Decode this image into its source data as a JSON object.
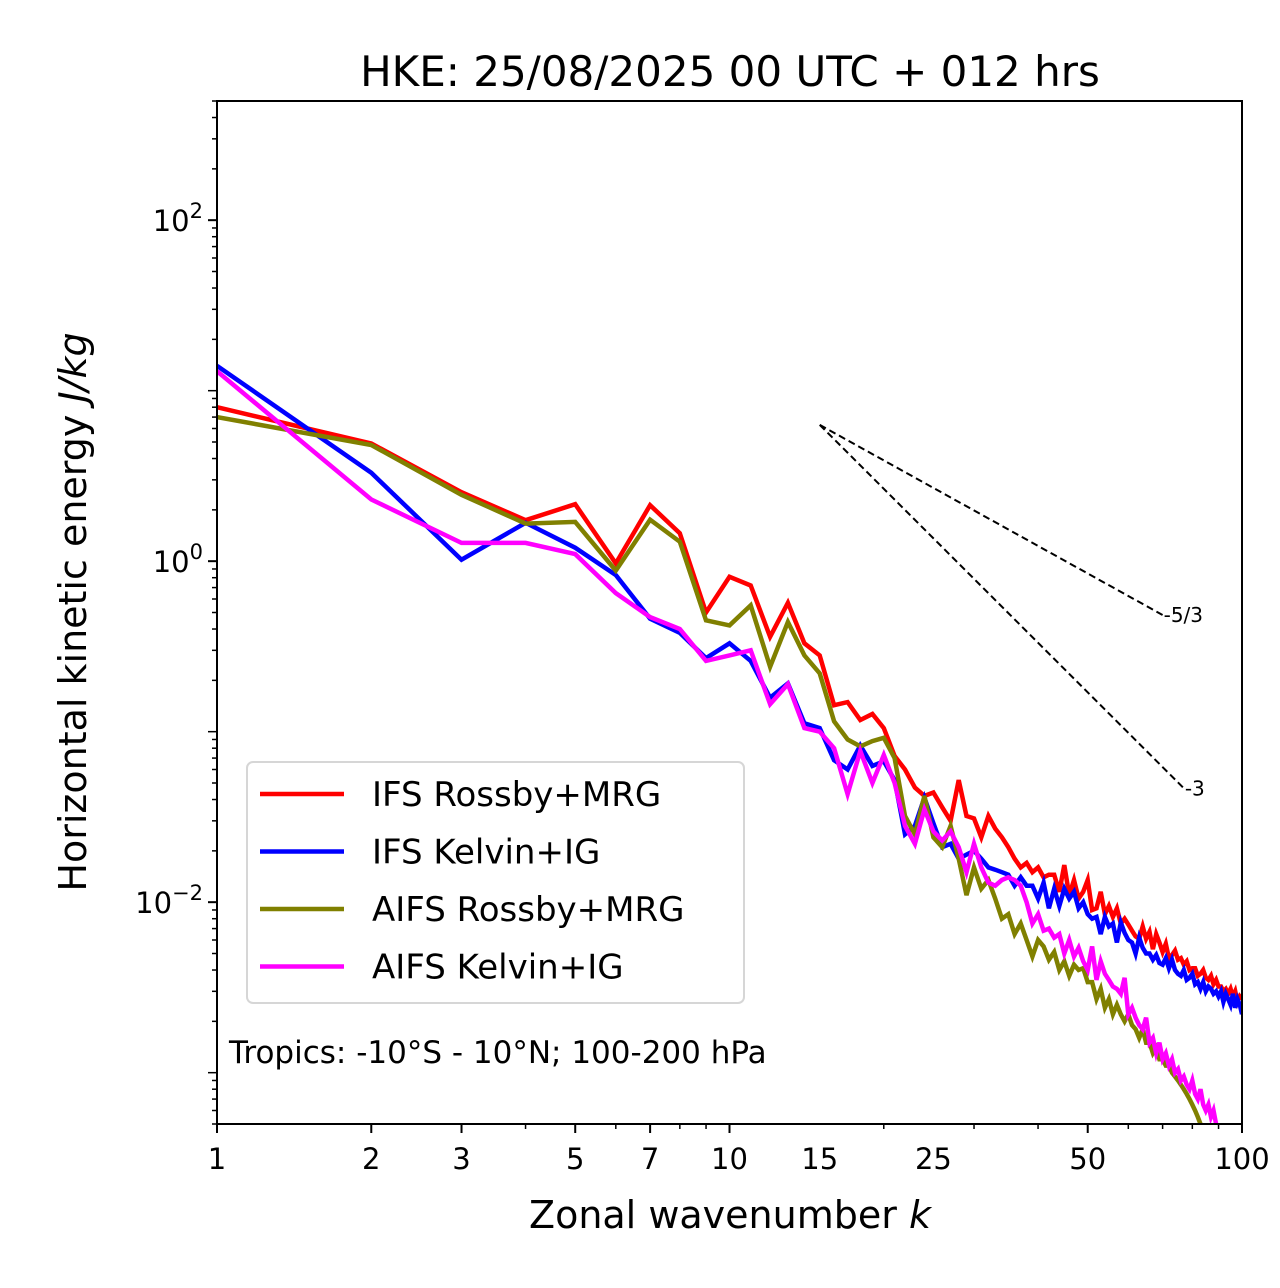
{
  "chart_data": {
    "type": "line",
    "title": "HKE: 25/08/2025 00 UTC + 012 hrs",
    "xlabel": "Zonal wavenumber",
    "xlabel_italic": "k",
    "ylabel": "Horizontal kinetic energy",
    "ylabel_italic": "J/kg",
    "xscale": "log",
    "yscale": "log",
    "xlim": [
      1,
      100
    ],
    "ylim": [
      0.0005,
      500
    ],
    "grid": false,
    "legend_position": "lower-left",
    "x_tick_labels": [
      "1",
      "2",
      "3",
      "5",
      "7",
      "10",
      "15",
      "25",
      "50",
      "100"
    ],
    "x_ticks": [
      1,
      2,
      3,
      5,
      7,
      10,
      15,
      25,
      50,
      100
    ],
    "y_ticks": [
      0.01,
      1,
      100
    ],
    "y_tick_labels": [
      {
        "base": "10",
        "exp": "−2"
      },
      {
        "base": "10",
        "exp": "0"
      },
      {
        "base": "10",
        "exp": "2"
      }
    ],
    "annotation": "Tropics: -10°S - 10°N; 100-200 hPa",
    "reference_slopes": [
      {
        "label": "-5/3",
        "slope": -1.6667,
        "x_start": 15,
        "x_end": 70,
        "y_start": 6.3
      },
      {
        "label": "-3",
        "slope": -3,
        "x_start": 15,
        "x_end": 77,
        "y_start": 6.3
      }
    ],
    "series": [
      {
        "name": "IFS Rossby+MRG",
        "color": "#ff0000",
        "x": [
          1,
          2,
          3,
          4,
          5,
          6,
          7,
          8,
          9,
          10,
          11,
          12,
          13,
          14,
          15,
          16,
          17,
          18,
          19,
          20,
          21,
          22,
          23,
          24,
          25,
          26,
          27,
          28,
          29,
          30,
          31,
          32,
          33,
          34,
          35,
          36,
          37,
          38,
          39,
          40,
          41,
          42,
          43,
          44,
          45,
          46,
          47,
          48,
          49,
          50,
          51,
          52,
          53,
          54,
          55,
          56,
          57,
          58,
          59,
          60,
          61,
          62,
          63,
          64,
          65,
          66,
          67,
          68,
          69,
          70,
          71,
          72,
          73,
          74,
          75,
          76,
          77,
          78,
          79,
          80,
          81,
          82,
          83,
          84,
          85,
          86,
          87,
          88,
          89,
          90,
          91,
          92,
          93,
          94,
          95,
          96,
          97,
          98,
          99,
          100
        ],
        "values": [
          8.0,
          4.9,
          2.54,
          1.74,
          2.16,
          0.97,
          2.13,
          1.46,
          0.5,
          0.81,
          0.72,
          0.36,
          0.57,
          0.33,
          0.28,
          0.143,
          0.149,
          0.117,
          0.127,
          0.105,
          0.072,
          0.06,
          0.047,
          0.042,
          0.044,
          0.036,
          0.03,
          0.052,
          0.032,
          0.031,
          0.024,
          0.032,
          0.027,
          0.024,
          0.021,
          0.018,
          0.016,
          0.017,
          0.015,
          0.016,
          0.014,
          0.0145,
          0.0145,
          0.0115,
          0.0165,
          0.011,
          0.0135,
          0.0105,
          0.0115,
          0.0135,
          0.009,
          0.0092,
          0.0115,
          0.0085,
          0.0095,
          0.0082,
          0.0092,
          0.0075,
          0.008,
          0.0074,
          0.0068,
          0.0063,
          0.0061,
          0.0072,
          0.0061,
          0.0067,
          0.0053,
          0.0065,
          0.0058,
          0.0051,
          0.0057,
          0.0047,
          0.0049,
          0.0052,
          0.0046,
          0.0047,
          0.0043,
          0.0045,
          0.004,
          0.0041,
          0.0041,
          0.0037,
          0.0038,
          0.004,
          0.0036,
          0.0035,
          0.0037,
          0.0033,
          0.0035,
          0.0032,
          0.0032,
          0.003,
          0.0031,
          0.0029,
          0.0031,
          0.0028,
          0.003,
          0.0026,
          0.0028,
          0.0027
        ]
      },
      {
        "name": "IFS Kelvin+IG",
        "color": "#0000ff",
        "x": [
          1,
          2,
          3,
          4,
          5,
          6,
          7,
          8,
          9,
          10,
          11,
          12,
          13,
          14,
          15,
          16,
          17,
          18,
          19,
          20,
          21,
          22,
          23,
          24,
          25,
          26,
          27,
          28,
          29,
          30,
          31,
          32,
          33,
          34,
          35,
          36,
          37,
          38,
          39,
          40,
          41,
          42,
          43,
          44,
          45,
          46,
          47,
          48,
          49,
          50,
          51,
          52,
          53,
          54,
          55,
          56,
          57,
          58,
          59,
          60,
          61,
          62,
          63,
          64,
          65,
          66,
          67,
          68,
          69,
          70,
          71,
          72,
          73,
          74,
          75,
          76,
          77,
          78,
          79,
          80,
          81,
          82,
          83,
          84,
          85,
          86,
          87,
          88,
          89,
          90,
          91,
          92,
          93,
          94,
          95,
          96,
          97,
          98,
          99,
          100
        ],
        "values": [
          14.0,
          3.3,
          1.02,
          1.68,
          1.2,
          0.83,
          0.46,
          0.38,
          0.27,
          0.33,
          0.26,
          0.158,
          0.192,
          0.112,
          0.105,
          0.068,
          0.06,
          0.083,
          0.063,
          0.067,
          0.052,
          0.025,
          0.028,
          0.041,
          0.029,
          0.021,
          0.022,
          0.018,
          0.019,
          0.02,
          0.018,
          0.016,
          0.0155,
          0.015,
          0.0145,
          0.0125,
          0.014,
          0.0125,
          0.0125,
          0.0105,
          0.013,
          0.0092,
          0.012,
          0.0095,
          0.012,
          0.0105,
          0.0115,
          0.0092,
          0.01,
          0.0085,
          0.008,
          0.0082,
          0.0065,
          0.0082,
          0.0072,
          0.0075,
          0.0058,
          0.0076,
          0.0066,
          0.006,
          0.0058,
          0.005,
          0.0062,
          0.0054,
          0.005,
          0.005,
          0.0046,
          0.0049,
          0.0044,
          0.0043,
          0.0047,
          0.0041,
          0.0046,
          0.004,
          0.0038,
          0.0037,
          0.004,
          0.0035,
          0.0036,
          0.0038,
          0.0033,
          0.0034,
          0.0031,
          0.0034,
          0.003,
          0.0032,
          0.0031,
          0.0029,
          0.003,
          0.0028,
          0.003,
          0.0026,
          0.0029,
          0.0027,
          0.0025,
          0.0029,
          0.0024,
          0.0027,
          0.0025,
          0.0022
        ]
      },
      {
        "name": "AIFS Rossby+MRG",
        "color": "#808000",
        "x": [
          1,
          2,
          3,
          4,
          5,
          6,
          7,
          8,
          9,
          10,
          11,
          12,
          13,
          14,
          15,
          16,
          17,
          18,
          19,
          20,
          21,
          22,
          23,
          24,
          25,
          26,
          27,
          28,
          29,
          30,
          31,
          32,
          33,
          34,
          35,
          36,
          37,
          38,
          39,
          40,
          41,
          42,
          43,
          44,
          45,
          46,
          47,
          48,
          49,
          50,
          51,
          52,
          53,
          54,
          55,
          56,
          57,
          58,
          59,
          60,
          61,
          62,
          63,
          64,
          65,
          66,
          67,
          68,
          69,
          70,
          71,
          72,
          73,
          74,
          75,
          76,
          77,
          78,
          79,
          80,
          81,
          82,
          83,
          84,
          85,
          86,
          87,
          88,
          89,
          90,
          91,
          92,
          93,
          94,
          95,
          96,
          97,
          98,
          99,
          100
        ],
        "values": [
          7.0,
          4.8,
          2.45,
          1.66,
          1.7,
          0.88,
          1.75,
          1.3,
          0.45,
          0.42,
          0.55,
          0.24,
          0.44,
          0.28,
          0.22,
          0.115,
          0.09,
          0.082,
          0.088,
          0.092,
          0.07,
          0.032,
          0.025,
          0.042,
          0.024,
          0.021,
          0.028,
          0.018,
          0.011,
          0.016,
          0.012,
          0.0135,
          0.0105,
          0.008,
          0.0085,
          0.0065,
          0.0075,
          0.006,
          0.0048,
          0.006,
          0.0055,
          0.0046,
          0.0051,
          0.004,
          0.0045,
          0.0037,
          0.0043,
          0.004,
          0.0041,
          0.0034,
          0.0034,
          0.0027,
          0.0031,
          0.0024,
          0.0027,
          0.0022,
          0.0025,
          0.0022,
          0.002,
          0.0022,
          0.0019,
          0.0018,
          0.0016,
          0.0018,
          0.0015,
          0.0015,
          0.0013,
          0.0014,
          0.0012,
          0.0012,
          0.0011,
          0.0011,
          0.001,
          0.00095,
          0.0009,
          0.00085,
          0.0008,
          0.00075,
          0.0007,
          0.00065,
          0.0006,
          0.00055,
          0.0005,
          0.00048,
          0.00046,
          0.00044,
          0.00042,
          0.0004,
          0.00038,
          0.00036,
          0.00035,
          0.00034,
          0.00033,
          0.00032,
          0.00031,
          0.0003,
          0.00029,
          0.00028,
          0.00027,
          0.00026
        ]
      },
      {
        "name": "AIFS Kelvin+IG",
        "color": "#ff00ff",
        "x": [
          1,
          2,
          3,
          4,
          5,
          6,
          7,
          8,
          9,
          10,
          11,
          12,
          13,
          14,
          15,
          16,
          17,
          18,
          19,
          20,
          21,
          22,
          23,
          24,
          25,
          26,
          27,
          28,
          29,
          30,
          31,
          32,
          33,
          34,
          35,
          36,
          37,
          38,
          39,
          40,
          41,
          42,
          43,
          44,
          45,
          46,
          47,
          48,
          49,
          50,
          51,
          52,
          53,
          54,
          55,
          56,
          57,
          58,
          59,
          60,
          61,
          62,
          63,
          64,
          65,
          66,
          67,
          68,
          69,
          70,
          71,
          72,
          73,
          74,
          75,
          76,
          77,
          78,
          79,
          80,
          81,
          82,
          83,
          84,
          85,
          86,
          87,
          88,
          89,
          90,
          91,
          92,
          93,
          94,
          95,
          96,
          97,
          98,
          99,
          100
        ],
        "values": [
          13.0,
          2.3,
          1.28,
          1.28,
          1.1,
          0.65,
          0.47,
          0.4,
          0.26,
          0.28,
          0.3,
          0.145,
          0.19,
          0.105,
          0.1,
          0.08,
          0.043,
          0.077,
          0.05,
          0.073,
          0.05,
          0.028,
          0.022,
          0.035,
          0.026,
          0.023,
          0.026,
          0.021,
          0.015,
          0.022,
          0.016,
          0.013,
          0.0125,
          0.0135,
          0.014,
          0.0135,
          0.0125,
          0.01,
          0.0075,
          0.0085,
          0.0068,
          0.007,
          0.0062,
          0.0065,
          0.005,
          0.006,
          0.0048,
          0.0054,
          0.0045,
          0.004,
          0.0055,
          0.0035,
          0.0045,
          0.0038,
          0.0035,
          0.0032,
          0.0031,
          0.0029,
          0.0036,
          0.0022,
          0.0024,
          0.0021,
          0.0019,
          0.0018,
          0.0021,
          0.0015,
          0.0016,
          0.0013,
          0.0015,
          0.0012,
          0.0013,
          0.0011,
          0.0012,
          0.001,
          0.00105,
          0.0009,
          0.00095,
          0.00085,
          0.0008,
          0.0009,
          0.00075,
          0.0007,
          0.0008,
          0.00065,
          0.0006,
          0.00065,
          0.00055,
          0.0006,
          0.0005,
          0.00048,
          0.00046,
          0.00044,
          0.00042,
          0.0004,
          0.00038,
          0.00036,
          0.00035,
          0.00034,
          0.00033,
          0.00032
        ]
      }
    ]
  }
}
